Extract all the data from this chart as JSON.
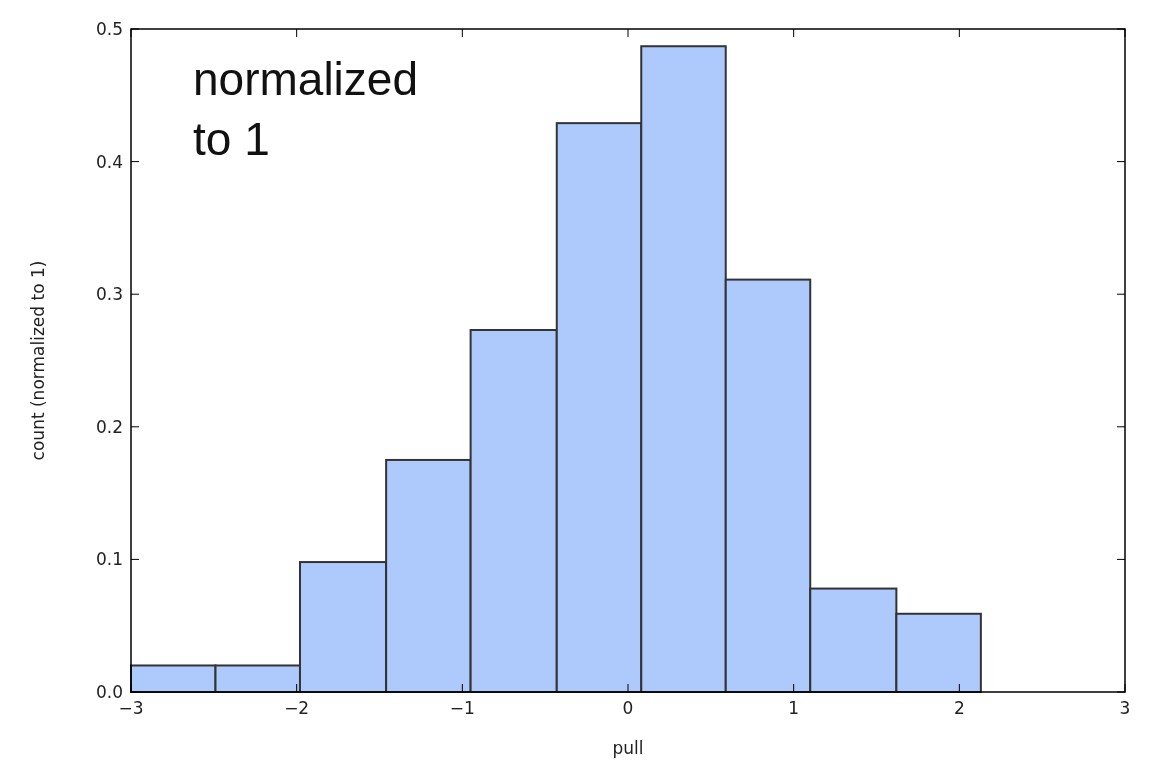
{
  "chart_data": {
    "type": "histogram",
    "xlabel": "pull",
    "ylabel": "count (normalized to 1)",
    "annotations": [
      "normalized\nto 1"
    ],
    "bins": [
      -3.0,
      -2.49,
      -1.98,
      -1.46,
      -0.95,
      -0.43,
      0.08,
      0.59,
      1.1,
      1.62,
      2.13
    ],
    "values": [
      0.02,
      0.02,
      0.098,
      0.175,
      0.273,
      0.429,
      0.487,
      0.311,
      0.078,
      0.059
    ],
    "color": "#aec9fb",
    "xlim": [
      -3,
      3
    ],
    "xticks": [
      {
        "value": -3,
        "label": "−3"
      },
      {
        "value": -2,
        "label": "−2"
      },
      {
        "value": -1,
        "label": "−1"
      },
      0,
      1,
      2,
      3
    ],
    "ylim": [
      0,
      0.5
    ],
    "yticks": [
      {
        "value": 0,
        "label": "0.0"
      },
      0.1,
      0.2,
      0.3,
      0.4,
      0.5
    ],
    "grid": false
  }
}
